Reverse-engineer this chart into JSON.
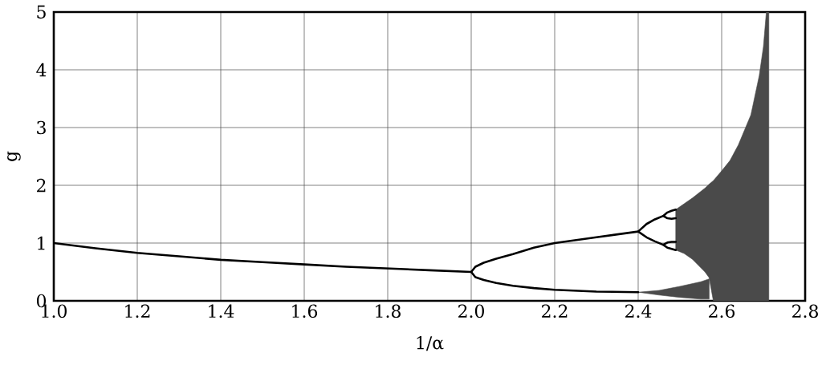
{
  "chart_data": {
    "type": "line",
    "xlabel": "1/α",
    "ylabel": "g",
    "xlim": [
      1.0,
      2.8
    ],
    "ylim": [
      0,
      5
    ],
    "xticks": [
      {
        "value": 1.0,
        "label": "1.0"
      },
      1.2,
      1.4,
      1.6,
      1.8,
      {
        "value": 2.0,
        "label": "2.0"
      },
      2.2,
      2.4,
      2.6,
      2.8
    ],
    "yticks": [
      0,
      1,
      2,
      3,
      4,
      5
    ],
    "grid": true,
    "series": [
      {
        "color": "#4a4a4a",
        "x": [
          2.4,
          2.45,
          2.5,
          2.55,
          2.57
        ],
        "values": [
          null,
          null,
          null,
          null,
          null
        ],
        "upper": [
          0.15,
          0.18,
          0.25,
          0.33,
          0.38
        ],
        "lower": [
          0.15,
          0.1,
          0.06,
          0.03,
          0.03
        ]
      },
      {
        "color": "#4a4a4a",
        "x": [
          2.49,
          2.51,
          2.53,
          2.56,
          2.57,
          2.58,
          2.6,
          2.62,
          2.64,
          2.67,
          2.69,
          2.7,
          2.707,
          2.713
        ],
        "values": [
          null,
          null,
          null,
          null,
          null,
          null,
          null,
          null,
          null,
          null,
          null,
          null,
          null,
          null
        ],
        "upper": [
          1.58,
          1.68,
          1.78,
          1.95,
          2.02,
          2.08,
          2.25,
          2.43,
          2.7,
          3.22,
          3.9,
          4.4,
          5.0,
          5.0
        ],
        "lower": [
          0.88,
          0.82,
          0.72,
          0.5,
          0.4,
          0,
          0,
          0,
          0,
          0,
          0,
          0,
          0,
          0
        ]
      },
      {
        "color": "#000000",
        "x": [
          1.0,
          1.1,
          1.2,
          1.3,
          1.4,
          1.5,
          1.6,
          1.7,
          1.8,
          1.9,
          2.0,
          2.01,
          2.03,
          2.06,
          2.1,
          2.15,
          2.2,
          2.3,
          2.4,
          2.42,
          2.44,
          2.46,
          2.47,
          2.48,
          2.49
        ],
        "values": [
          1.0,
          0.91,
          0.83,
          0.77,
          0.71,
          0.67,
          0.63,
          0.59,
          0.56,
          0.53,
          0.5,
          0.59,
          0.66,
          0.73,
          0.81,
          0.92,
          1.0,
          1.1,
          1.2,
          1.33,
          1.41,
          1.47,
          1.53,
          1.56,
          1.58
        ]
      },
      {
        "color": "#000000",
        "x": [
          2.0,
          2.01,
          2.03,
          2.06,
          2.1,
          2.15,
          2.2,
          2.3,
          2.4
        ],
        "values": [
          0.5,
          0.41,
          0.36,
          0.31,
          0.26,
          0.22,
          0.19,
          0.16,
          0.15
        ]
      },
      {
        "color": "#000000",
        "x": [
          2.4,
          2.42,
          2.44,
          2.46,
          2.47,
          2.48,
          2.49
        ],
        "values": [
          1.2,
          1.1,
          1.03,
          0.97,
          1.01,
          1.02,
          1.02
        ]
      },
      {
        "color": "#000000",
        "x": [
          2.46,
          2.47,
          2.48,
          2.49
        ],
        "values": [
          1.47,
          1.43,
          1.42,
          1.43
        ]
      },
      {
        "color": "#000000",
        "x": [
          2.46,
          2.47,
          2.48,
          2.49
        ],
        "values": [
          0.97,
          0.92,
          0.9,
          0.88
        ]
      }
    ]
  }
}
